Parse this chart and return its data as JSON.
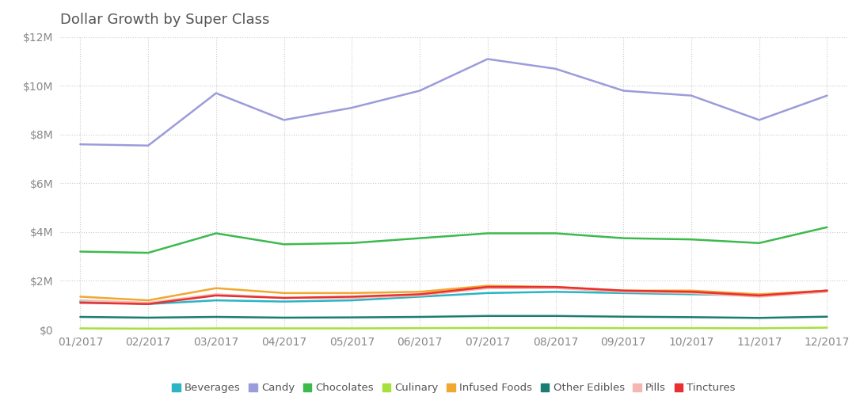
{
  "title": "Dollar Growth by Super Class",
  "months": [
    "01/2017",
    "02/2017",
    "03/2017",
    "04/2017",
    "05/2017",
    "06/2017",
    "07/2017",
    "08/2017",
    "09/2017",
    "10/2017",
    "11/2017",
    "12/2017"
  ],
  "series": {
    "Beverages": {
      "values": [
        1150000,
        1050000,
        1200000,
        1150000,
        1200000,
        1350000,
        1500000,
        1550000,
        1500000,
        1450000,
        1400000,
        1600000
      ],
      "color": "#29b5c3"
    },
    "Candy": {
      "values": [
        7600000,
        7550000,
        9700000,
        8600000,
        9100000,
        9800000,
        11100000,
        10700000,
        9800000,
        9600000,
        8600000,
        9600000
      ],
      "color": "#9b9cda"
    },
    "Chocolates": {
      "values": [
        3200000,
        3150000,
        3950000,
        3500000,
        3550000,
        3750000,
        3950000,
        3950000,
        3750000,
        3700000,
        3550000,
        4200000
      ],
      "color": "#3dba4e"
    },
    "Culinary": {
      "values": [
        50000,
        40000,
        50000,
        50000,
        50000,
        60000,
        70000,
        70000,
        60000,
        60000,
        55000,
        80000
      ],
      "color": "#a6e03c"
    },
    "Infused Foods": {
      "values": [
        1350000,
        1200000,
        1700000,
        1500000,
        1500000,
        1550000,
        1800000,
        1750000,
        1600000,
        1600000,
        1450000,
        1600000
      ],
      "color": "#f0a830"
    },
    "Other Edibles": {
      "values": [
        520000,
        490000,
        520000,
        490000,
        500000,
        520000,
        560000,
        560000,
        530000,
        510000,
        480000,
        530000
      ],
      "color": "#1a7d74"
    },
    "Pills": {
      "values": [
        1200000,
        1100000,
        1450000,
        1300000,
        1300000,
        1400000,
        1700000,
        1700000,
        1550000,
        1500000,
        1350000,
        1550000
      ],
      "color": "#f5b8b0"
    },
    "Tinctures": {
      "values": [
        1100000,
        1050000,
        1400000,
        1300000,
        1350000,
        1450000,
        1750000,
        1750000,
        1600000,
        1550000,
        1400000,
        1600000
      ],
      "color": "#e83030"
    }
  },
  "ylim": [
    0,
    12000000
  ],
  "yticks": [
    0,
    2000000,
    4000000,
    6000000,
    8000000,
    10000000,
    12000000
  ],
  "ytick_labels": [
    "$0",
    "$2M",
    "$4M",
    "$6M",
    "$8M",
    "$10M",
    "$12M"
  ],
  "background_color": "#ffffff",
  "grid_color": "#cccccc",
  "title_color": "#555555",
  "axis_label_color": "#888888",
  "legend_order": [
    "Beverages",
    "Candy",
    "Chocolates",
    "Culinary",
    "Infused Foods",
    "Other Edibles",
    "Pills",
    "Tinctures"
  ]
}
